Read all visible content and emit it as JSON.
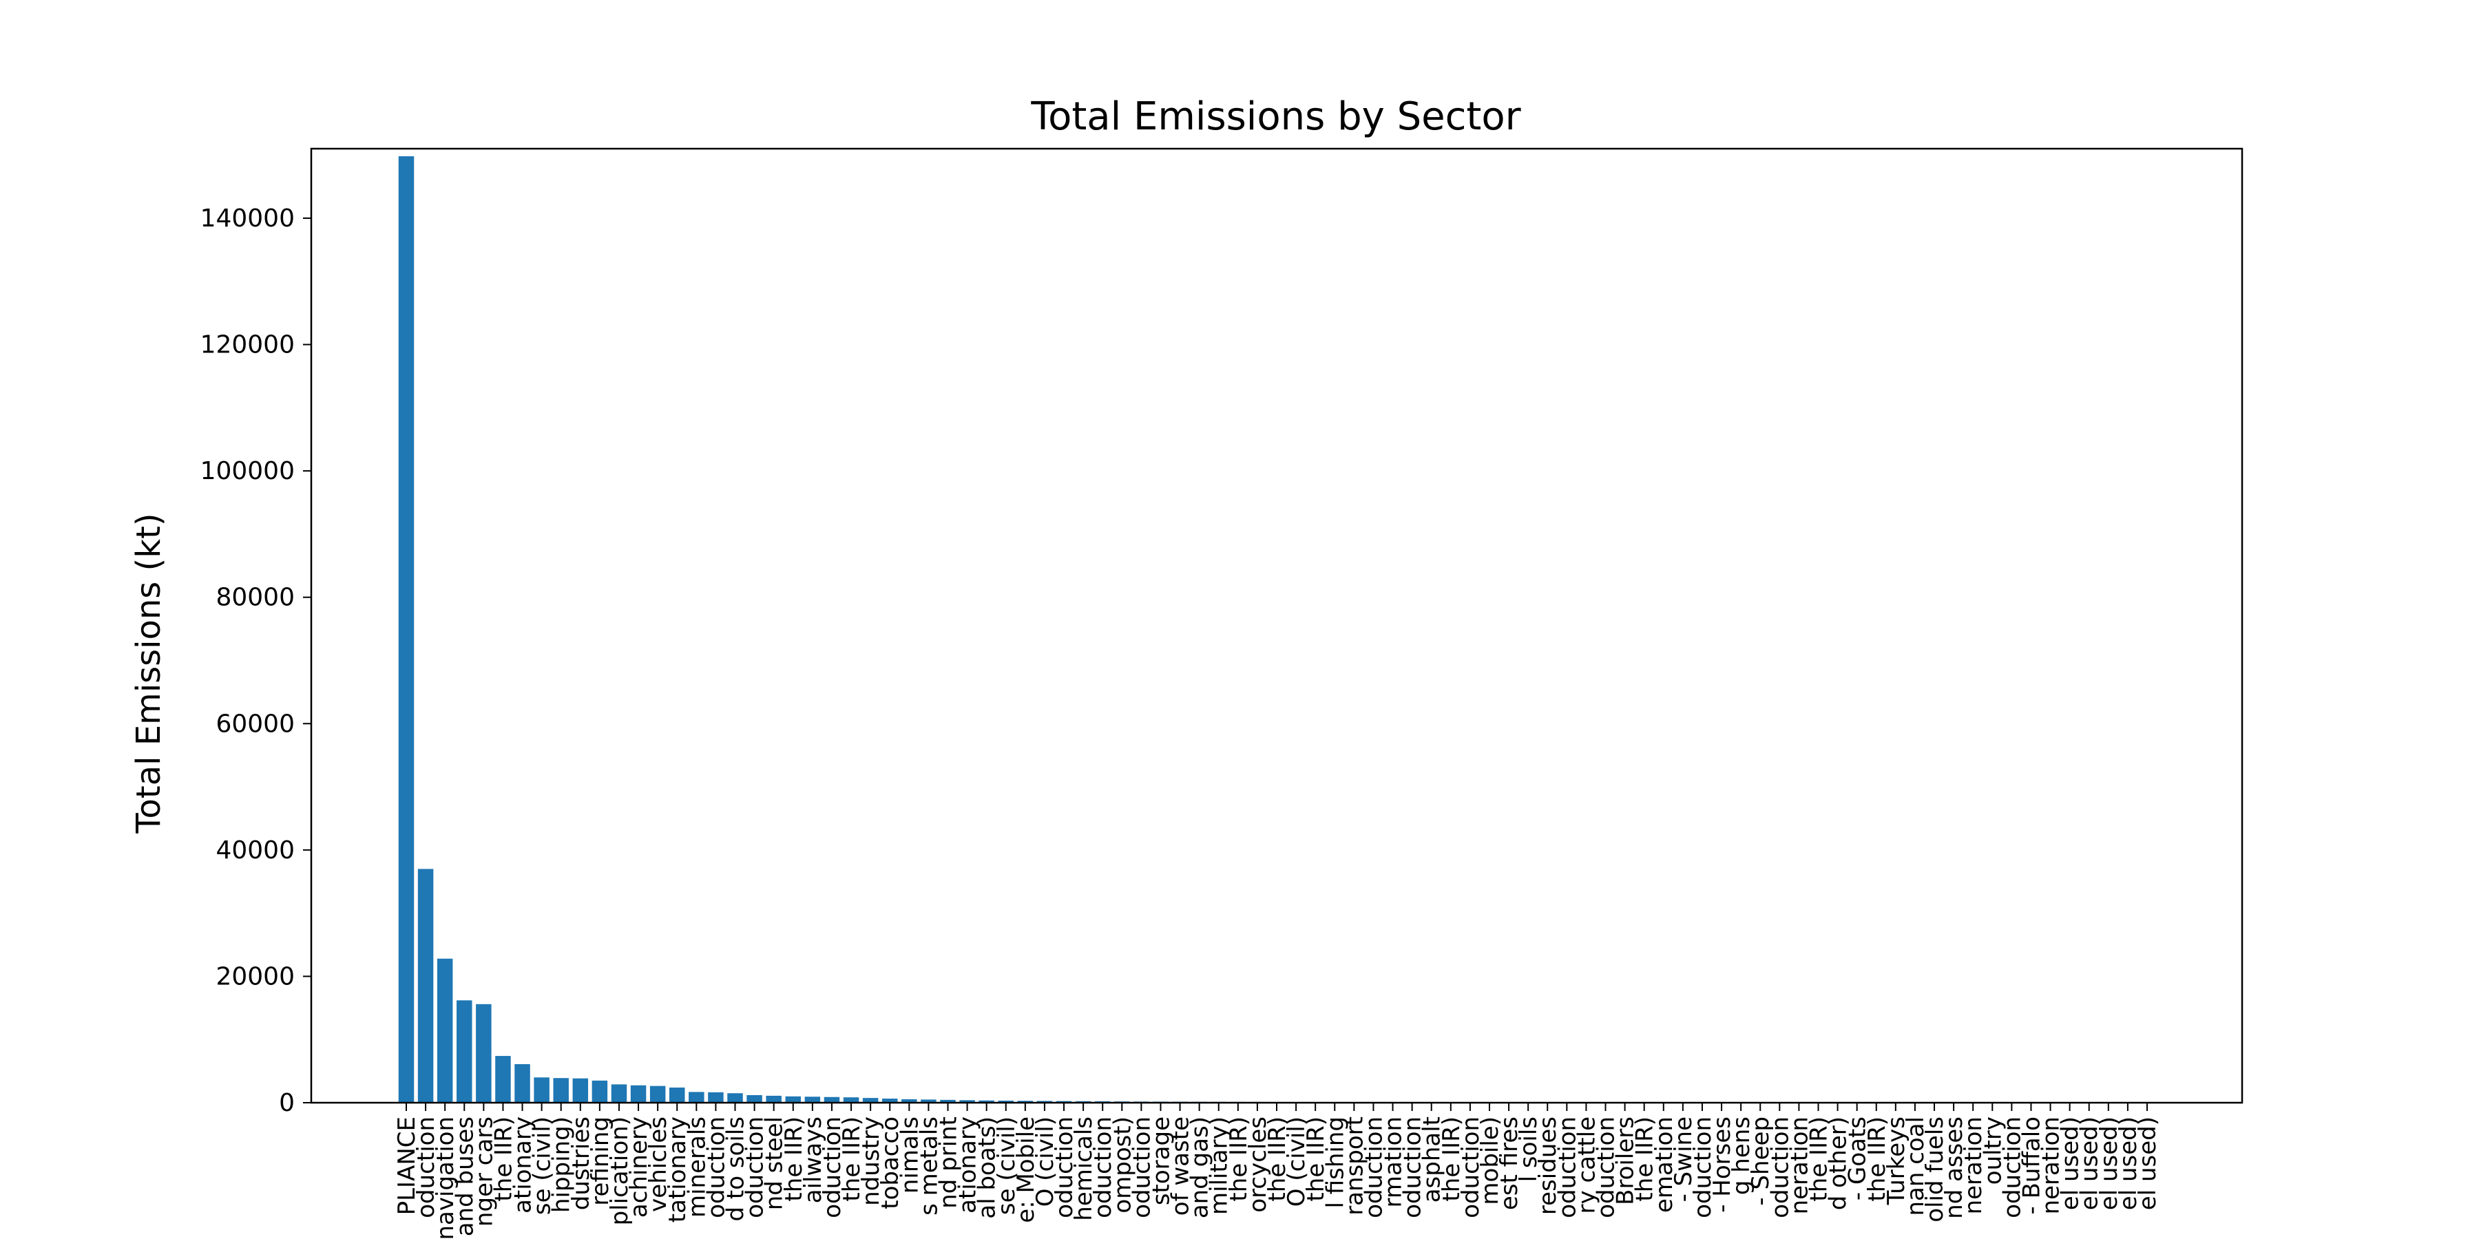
{
  "chart_data": {
    "type": "bar",
    "title": "Total Emissions by Sector",
    "xlabel": "",
    "ylabel": "Total Emissions (kt)",
    "ylim": [
      0,
      150000
    ],
    "yticks": [
      0,
      20000,
      40000,
      60000,
      80000,
      100000,
      120000,
      140000
    ],
    "grid": false,
    "bar_color": "#1f77b4",
    "categories": [
      "PLIANCE",
      "oduction",
      "navigation",
      "and buses",
      "nger cars",
      "the IIR)",
      "ationary",
      "se (civil)",
      "hipping)",
      "dustries",
      "refining",
      "plication)",
      "achinery",
      "vehicles",
      "tationary",
      "minerals",
      "oduction",
      "d to soils",
      "oduction",
      "nd steel",
      "the IIR)",
      "ailways",
      "oduction",
      "the IIR)",
      "ndustry",
      "tobacco",
      "nimals",
      "s metals",
      "nd print",
      "ationary",
      "al boats)",
      "se (civil)",
      "e: Mobile",
      "O (civil)",
      "oduction",
      "hemicals",
      "oduction",
      "ompost)",
      "oduction",
      "storage",
      "of waste",
      "and gas)",
      "military)",
      "the IIR)",
      "orcycles",
      "the IIR)",
      "O (civil)",
      "the IIR)",
      "l fishing",
      "ransport",
      "oduction",
      "rmation",
      "oduction",
      "asphalt",
      "the IIR)",
      "oduction",
      "mobile)",
      "est fires",
      "l soils",
      "residues",
      "oduction",
      "ry cattle",
      "oduction",
      "Broilers",
      "the IIR)",
      "emation",
      "- Swine",
      "oduction",
      "- Horses",
      "g hens",
      "- Sheep",
      "oduction",
      "neration",
      "the IIR)",
      "d other)",
      "- Goats",
      "the IIR)",
      "Turkeys",
      "nan coal",
      "olid fuels",
      "nd asses",
      "neration",
      "oultry",
      "oduction",
      "- Buffalo",
      "neration",
      "el used)",
      "el used)",
      "el used)",
      "el used)",
      "el used)"
    ],
    "values": [
      149800,
      37000,
      22800,
      16200,
      15600,
      7400,
      6100,
      4000,
      3900,
      3850,
      3500,
      2900,
      2750,
      2650,
      2400,
      1700,
      1650,
      1500,
      1200,
      1100,
      1000,
      950,
      900,
      850,
      750,
      650,
      550,
      500,
      450,
      400,
      350,
      320,
      300,
      280,
      260,
      240,
      220,
      200,
      180,
      170,
      160,
      150,
      140,
      130,
      120,
      110,
      100,
      90,
      85,
      80,
      75,
      70,
      65,
      60,
      55,
      50,
      45,
      42,
      40,
      38,
      35,
      32,
      30,
      28,
      26,
      24,
      22,
      20,
      18,
      16,
      15,
      14,
      13,
      12,
      11,
      10,
      9,
      8,
      7,
      6,
      5,
      4,
      4,
      3,
      3,
      2,
      2,
      1,
      1,
      1,
      1
    ]
  }
}
